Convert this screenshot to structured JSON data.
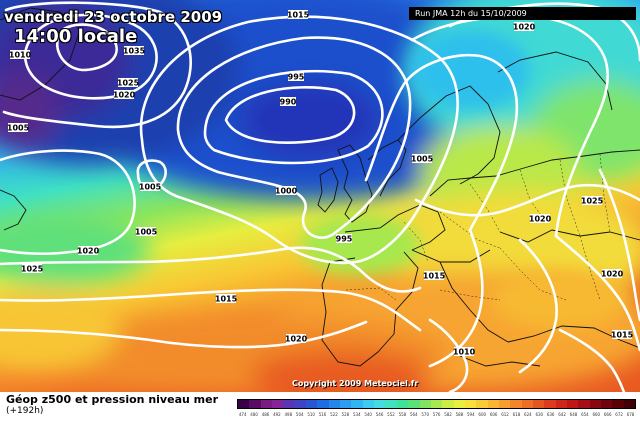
{
  "header": {
    "date": "vendredi 23 octobre 2009",
    "time": "14:00 locale",
    "run": "Run JMA 12h du 15/10/2009"
  },
  "footer": {
    "title": "Géop z500 et pression niveau mer",
    "lead_time": "(+192h)",
    "copyright": "Copyright 2009 Meteociel.fr"
  },
  "isobar_labels": [
    "1015",
    "1020",
    "1010",
    "1035",
    "1025",
    "1020",
    "1005",
    "995",
    "990",
    "1005",
    "1005",
    "1000",
    "1005",
    "1025",
    "995",
    "1020",
    "1025",
    "1015",
    "1015",
    "1020",
    "1020",
    "1010",
    "1015",
    "1020"
  ],
  "legend": {
    "colors": [
      "#3a0045",
      "#5a0b63",
      "#7b1c82",
      "#86249a",
      "#5836b4",
      "#3d44c6",
      "#2c55d6",
      "#1e6de2",
      "#2486ea",
      "#2b9ef0",
      "#30b6f2",
      "#3dccf0",
      "#44dce0",
      "#40e2c0",
      "#3ee29a",
      "#5ae278",
      "#80e462",
      "#a8e850",
      "#ccec46",
      "#eaee3e",
      "#f8e03a",
      "#f8cc36",
      "#f8b632",
      "#f89e2e",
      "#f4862a",
      "#ee6e26",
      "#e65422",
      "#dc3c1e",
      "#d0261a",
      "#c01616",
      "#a80c14",
      "#8c0610",
      "#70040c",
      "#580208",
      "#400006"
    ],
    "ticks": [
      "474",
      "480",
      "486",
      "492",
      "498",
      "504",
      "510",
      "516",
      "522",
      "528",
      "534",
      "540",
      "546",
      "552",
      "558",
      "564",
      "570",
      "576",
      "582",
      "588",
      "594",
      "600",
      "606",
      "612",
      "618",
      "624",
      "630",
      "636",
      "642",
      "648",
      "654",
      "660",
      "666",
      "672",
      "678"
    ]
  }
}
